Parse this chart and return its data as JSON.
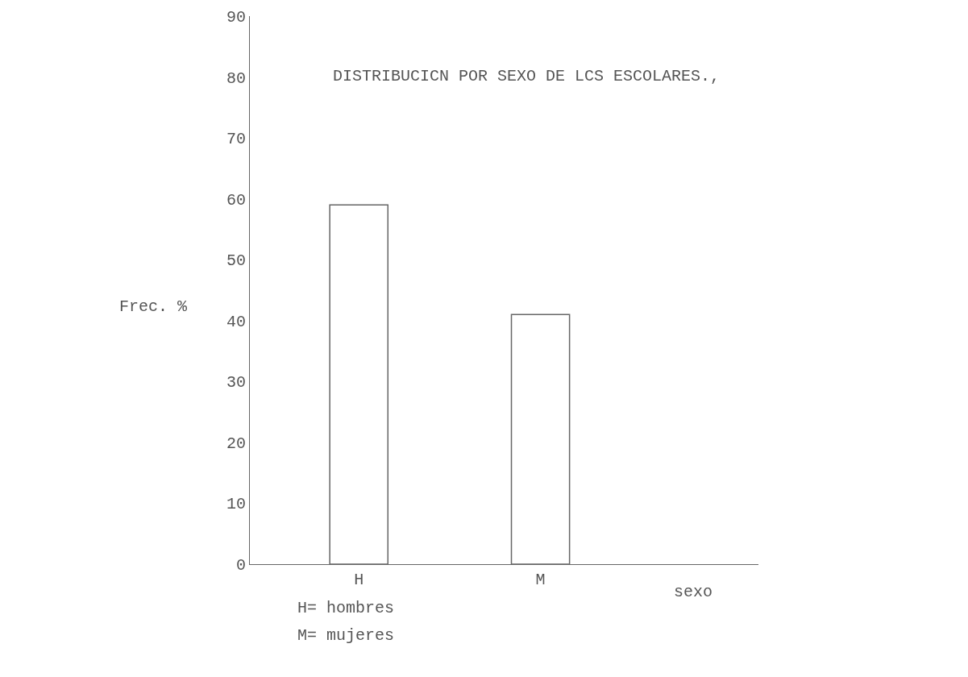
{
  "chart_data": {
    "type": "bar",
    "title": "DISTRIBUCICN POR SEXO DE LCS ESCOLARES.,",
    "xlabel": "sexo",
    "ylabel": "Frec. %",
    "categories": [
      "H",
      "M"
    ],
    "values": [
      59,
      41
    ],
    "color": "#ffffff",
    "ylim": [
      0,
      90
    ],
    "yticks": [
      0,
      10,
      20,
      30,
      40,
      50,
      60,
      70,
      80,
      90
    ],
    "grid": false,
    "annotations": [
      "H= hombres",
      "M= mujeres"
    ]
  }
}
